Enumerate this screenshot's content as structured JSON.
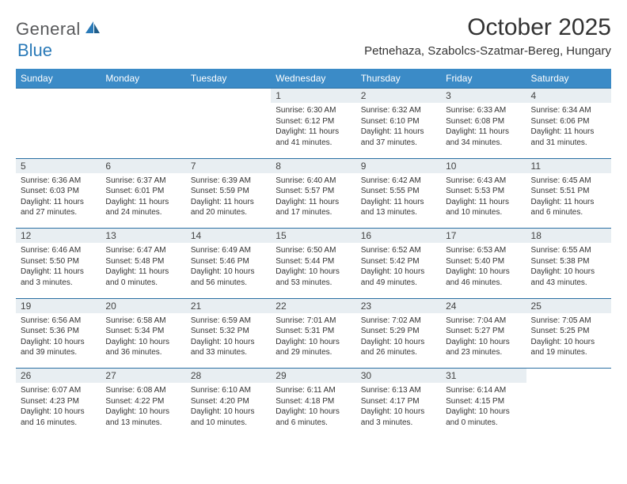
{
  "brand": {
    "part1": "General",
    "part2": "Blue"
  },
  "title": "October 2025",
  "location": "Petnehaza, Szabolcs-Szatmar-Bereg, Hungary",
  "colors": {
    "header_bg": "#3b8bc7",
    "header_text": "#ffffff",
    "daynum_bg": "#e8eef2",
    "border": "#2a6fa3",
    "brand_gray": "#58595b",
    "brand_blue": "#2a7ab8",
    "text": "#333333"
  },
  "dayNames": [
    "Sunday",
    "Monday",
    "Tuesday",
    "Wednesday",
    "Thursday",
    "Friday",
    "Saturday"
  ],
  "weeks": [
    [
      null,
      null,
      null,
      {
        "n": "1",
        "sr": "6:30 AM",
        "ss": "6:12 PM",
        "dl": "11 hours and 41 minutes."
      },
      {
        "n": "2",
        "sr": "6:32 AM",
        "ss": "6:10 PM",
        "dl": "11 hours and 37 minutes."
      },
      {
        "n": "3",
        "sr": "6:33 AM",
        "ss": "6:08 PM",
        "dl": "11 hours and 34 minutes."
      },
      {
        "n": "4",
        "sr": "6:34 AM",
        "ss": "6:06 PM",
        "dl": "11 hours and 31 minutes."
      }
    ],
    [
      {
        "n": "5",
        "sr": "6:36 AM",
        "ss": "6:03 PM",
        "dl": "11 hours and 27 minutes."
      },
      {
        "n": "6",
        "sr": "6:37 AM",
        "ss": "6:01 PM",
        "dl": "11 hours and 24 minutes."
      },
      {
        "n": "7",
        "sr": "6:39 AM",
        "ss": "5:59 PM",
        "dl": "11 hours and 20 minutes."
      },
      {
        "n": "8",
        "sr": "6:40 AM",
        "ss": "5:57 PM",
        "dl": "11 hours and 17 minutes."
      },
      {
        "n": "9",
        "sr": "6:42 AM",
        "ss": "5:55 PM",
        "dl": "11 hours and 13 minutes."
      },
      {
        "n": "10",
        "sr": "6:43 AM",
        "ss": "5:53 PM",
        "dl": "11 hours and 10 minutes."
      },
      {
        "n": "11",
        "sr": "6:45 AM",
        "ss": "5:51 PM",
        "dl": "11 hours and 6 minutes."
      }
    ],
    [
      {
        "n": "12",
        "sr": "6:46 AM",
        "ss": "5:50 PM",
        "dl": "11 hours and 3 minutes."
      },
      {
        "n": "13",
        "sr": "6:47 AM",
        "ss": "5:48 PM",
        "dl": "11 hours and 0 minutes."
      },
      {
        "n": "14",
        "sr": "6:49 AM",
        "ss": "5:46 PM",
        "dl": "10 hours and 56 minutes."
      },
      {
        "n": "15",
        "sr": "6:50 AM",
        "ss": "5:44 PM",
        "dl": "10 hours and 53 minutes."
      },
      {
        "n": "16",
        "sr": "6:52 AM",
        "ss": "5:42 PM",
        "dl": "10 hours and 49 minutes."
      },
      {
        "n": "17",
        "sr": "6:53 AM",
        "ss": "5:40 PM",
        "dl": "10 hours and 46 minutes."
      },
      {
        "n": "18",
        "sr": "6:55 AM",
        "ss": "5:38 PM",
        "dl": "10 hours and 43 minutes."
      }
    ],
    [
      {
        "n": "19",
        "sr": "6:56 AM",
        "ss": "5:36 PM",
        "dl": "10 hours and 39 minutes."
      },
      {
        "n": "20",
        "sr": "6:58 AM",
        "ss": "5:34 PM",
        "dl": "10 hours and 36 minutes."
      },
      {
        "n": "21",
        "sr": "6:59 AM",
        "ss": "5:32 PM",
        "dl": "10 hours and 33 minutes."
      },
      {
        "n": "22",
        "sr": "7:01 AM",
        "ss": "5:31 PM",
        "dl": "10 hours and 29 minutes."
      },
      {
        "n": "23",
        "sr": "7:02 AM",
        "ss": "5:29 PM",
        "dl": "10 hours and 26 minutes."
      },
      {
        "n": "24",
        "sr": "7:04 AM",
        "ss": "5:27 PM",
        "dl": "10 hours and 23 minutes."
      },
      {
        "n": "25",
        "sr": "7:05 AM",
        "ss": "5:25 PM",
        "dl": "10 hours and 19 minutes."
      }
    ],
    [
      {
        "n": "26",
        "sr": "6:07 AM",
        "ss": "4:23 PM",
        "dl": "10 hours and 16 minutes."
      },
      {
        "n": "27",
        "sr": "6:08 AM",
        "ss": "4:22 PM",
        "dl": "10 hours and 13 minutes."
      },
      {
        "n": "28",
        "sr": "6:10 AM",
        "ss": "4:20 PM",
        "dl": "10 hours and 10 minutes."
      },
      {
        "n": "29",
        "sr": "6:11 AM",
        "ss": "4:18 PM",
        "dl": "10 hours and 6 minutes."
      },
      {
        "n": "30",
        "sr": "6:13 AM",
        "ss": "4:17 PM",
        "dl": "10 hours and 3 minutes."
      },
      {
        "n": "31",
        "sr": "6:14 AM",
        "ss": "4:15 PM",
        "dl": "10 hours and 0 minutes."
      },
      null
    ]
  ]
}
